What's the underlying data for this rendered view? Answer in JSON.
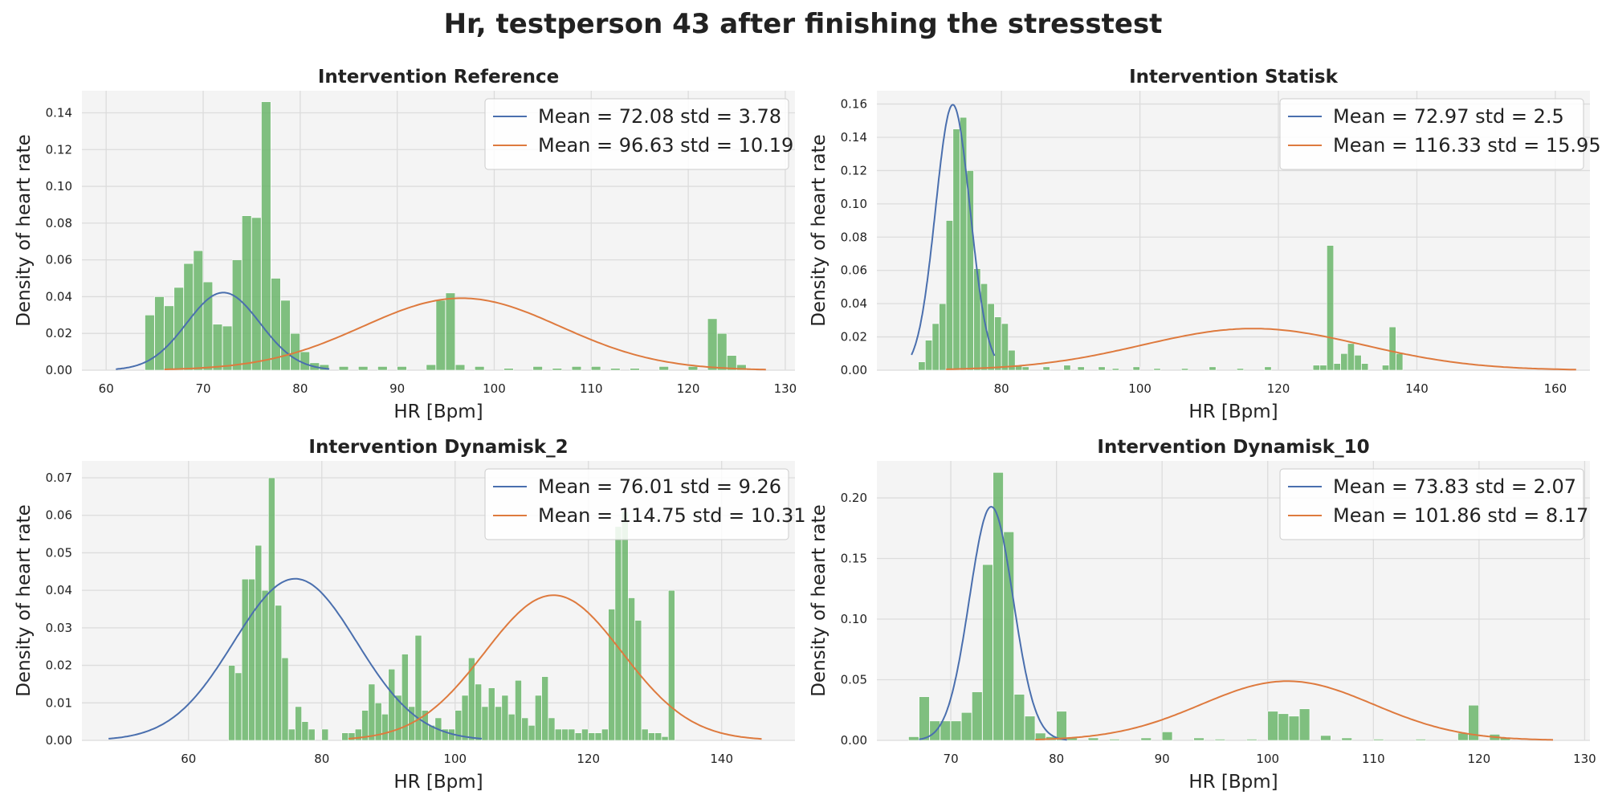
{
  "suptitle": "Hr, testperson 43 after finishing the stresstest",
  "colors": {
    "axes_bg": "#f4f4f4",
    "grid": "#dcdcdc",
    "hist": "#6ab56a",
    "fit1": "#4a6fae",
    "fit2": "#de7a3e",
    "text": "#222222"
  },
  "chart_data": [
    {
      "type": "bar",
      "title": "Intervention Reference",
      "xlabel": "HR [Bpm]",
      "ylabel": "Density of heart rate",
      "xlim": [
        57.5,
        131
      ],
      "ylim": [
        0,
        0.152
      ],
      "xticks": [
        60,
        70,
        80,
        90,
        100,
        110,
        120,
        130
      ],
      "yticks": [
        0.0,
        0.02,
        0.04,
        0.06,
        0.08,
        0.1,
        0.12,
        0.14
      ],
      "ytick_decimals": 2,
      "grid": true,
      "legend_position": "top-right",
      "histogram": {
        "bin_width": 0.97,
        "bins": [
          [
            64.0,
            0.03
          ],
          [
            65.0,
            0.04
          ],
          [
            66.0,
            0.035
          ],
          [
            67.0,
            0.045
          ],
          [
            68.0,
            0.058
          ],
          [
            69.0,
            0.065
          ],
          [
            70.0,
            0.048
          ],
          [
            71.0,
            0.025
          ],
          [
            72.0,
            0.024
          ],
          [
            73.0,
            0.06
          ],
          [
            74.0,
            0.084
          ],
          [
            75.0,
            0.083
          ],
          [
            76.0,
            0.146
          ],
          [
            77.0,
            0.05
          ],
          [
            78.0,
            0.038
          ],
          [
            79.0,
            0.02
          ],
          [
            80.0,
            0.01
          ],
          [
            81.0,
            0.004
          ],
          [
            82.0,
            0.003
          ],
          [
            84.0,
            0.002
          ],
          [
            86.0,
            0.002
          ],
          [
            88.0,
            0.002
          ],
          [
            90.0,
            0.002
          ],
          [
            93.0,
            0.003
          ],
          [
            94.0,
            0.038
          ],
          [
            95.0,
            0.042
          ],
          [
            96.0,
            0.003
          ],
          [
            98.0,
            0.002
          ],
          [
            101.0,
            0.001
          ],
          [
            104.0,
            0.002
          ],
          [
            106.0,
            0.001
          ],
          [
            108.0,
            0.002
          ],
          [
            110.0,
            0.002
          ],
          [
            112.0,
            0.001
          ],
          [
            114.0,
            0.001
          ],
          [
            117.0,
            0.002
          ],
          [
            120.0,
            0.002
          ],
          [
            122.0,
            0.028
          ],
          [
            123.0,
            0.02
          ],
          [
            124.0,
            0.008
          ],
          [
            125.0,
            0.003
          ],
          [
            126.0,
            0.001
          ]
        ]
      },
      "fits": [
        {
          "mean": 72.08,
          "std": 3.78,
          "weight": 0.4,
          "x_range": [
            61,
            83
          ],
          "label": "Mean = 72.08 std = 3.78"
        },
        {
          "mean": 96.63,
          "std": 10.19,
          "weight": 1.0,
          "x_range": [
            66,
            128
          ],
          "label": "Mean = 96.63 std = 10.19"
        }
      ]
    },
    {
      "type": "bar",
      "title": "Intervention Statisk",
      "xlabel": "HR [Bpm]",
      "ylabel": "Density of heart rate",
      "xlim": [
        62,
        165
      ],
      "ylim": [
        0,
        0.168
      ],
      "xticks": [
        80,
        100,
        120,
        140,
        160
      ],
      "yticks": [
        0.0,
        0.02,
        0.04,
        0.06,
        0.08,
        0.1,
        0.12,
        0.14,
        0.16
      ],
      "ytick_decimals": 2,
      "grid": true,
      "legend_position": "top-right",
      "histogram": {
        "bin_width": 0.97,
        "bins": [
          [
            68.0,
            0.005
          ],
          [
            69.0,
            0.018
          ],
          [
            70.0,
            0.028
          ],
          [
            71.0,
            0.04
          ],
          [
            72.0,
            0.09
          ],
          [
            73.0,
            0.145
          ],
          [
            74.0,
            0.152
          ],
          [
            75.0,
            0.12
          ],
          [
            76.0,
            0.061
          ],
          [
            77.0,
            0.052
          ],
          [
            78.0,
            0.04
          ],
          [
            79.0,
            0.032
          ],
          [
            80.0,
            0.028
          ],
          [
            81.0,
            0.012
          ],
          [
            82.0,
            0.003
          ],
          [
            83.0,
            0.002
          ],
          [
            86.0,
            0.002
          ],
          [
            89.0,
            0.003
          ],
          [
            91.0,
            0.002
          ],
          [
            94.0,
            0.002
          ],
          [
            96.0,
            0.001
          ],
          [
            99.0,
            0.002
          ],
          [
            102.0,
            0.001
          ],
          [
            106.0,
            0.001
          ],
          [
            110.0,
            0.002
          ],
          [
            114.0,
            0.001
          ],
          [
            118.0,
            0.002
          ],
          [
            125.0,
            0.003
          ],
          [
            126.0,
            0.003
          ],
          [
            127.0,
            0.075
          ],
          [
            128.0,
            0.004
          ],
          [
            129.0,
            0.01
          ],
          [
            130.0,
            0.016
          ],
          [
            131.0,
            0.009
          ],
          [
            132.0,
            0.004
          ],
          [
            135.0,
            0.003
          ],
          [
            136.0,
            0.026
          ],
          [
            137.0,
            0.01
          ]
        ]
      },
      "fits": [
        {
          "mean": 72.97,
          "std": 2.5,
          "weight": 1.0,
          "x_range": [
            67,
            79
          ],
          "label": "Mean = 72.97 std = 2.5"
        },
        {
          "mean": 116.33,
          "std": 15.95,
          "weight": 1.0,
          "x_range": [
            72,
            163
          ],
          "label": "Mean = 116.33 std = 15.95"
        }
      ]
    },
    {
      "type": "bar",
      "title": "Intervention Dynamisk_2",
      "xlabel": "HR [Bpm]",
      "ylabel": "Density of heart rate",
      "xlim": [
        44,
        151
      ],
      "ylim": [
        0,
        0.0745
      ],
      "xticks": [
        60,
        80,
        100,
        120,
        140
      ],
      "yticks": [
        0.0,
        0.01,
        0.02,
        0.03,
        0.04,
        0.05,
        0.06,
        0.07
      ],
      "ytick_decimals": 2,
      "grid": true,
      "legend_position": "top-right",
      "histogram": {
        "bin_width": 0.97,
        "bins": [
          [
            66.0,
            0.02
          ],
          [
            67.0,
            0.018
          ],
          [
            68.0,
            0.043
          ],
          [
            69.0,
            0.043
          ],
          [
            70.0,
            0.052
          ],
          [
            71.0,
            0.04
          ],
          [
            72.0,
            0.07
          ],
          [
            73.0,
            0.036
          ],
          [
            74.0,
            0.022
          ],
          [
            75.0,
            0.003
          ],
          [
            76.0,
            0.009
          ],
          [
            77.0,
            0.005
          ],
          [
            78.0,
            0.003
          ],
          [
            80.0,
            0.003
          ],
          [
            83.0,
            0.002
          ],
          [
            84.0,
            0.002
          ],
          [
            85.0,
            0.003
          ],
          [
            86.0,
            0.008
          ],
          [
            87.0,
            0.015
          ],
          [
            88.0,
            0.01
          ],
          [
            89.0,
            0.007
          ],
          [
            90.0,
            0.019
          ],
          [
            91.0,
            0.012
          ],
          [
            92.0,
            0.023
          ],
          [
            93.0,
            0.009
          ],
          [
            94.0,
            0.028
          ],
          [
            95.0,
            0.008
          ],
          [
            96.0,
            0.004
          ],
          [
            97.0,
            0.006
          ],
          [
            98.0,
            0.003
          ],
          [
            99.0,
            0.003
          ],
          [
            100.0,
            0.008
          ],
          [
            101.0,
            0.012
          ],
          [
            102.0,
            0.022
          ],
          [
            103.0,
            0.015
          ],
          [
            104.0,
            0.009
          ],
          [
            105.0,
            0.014
          ],
          [
            106.0,
            0.009
          ],
          [
            107.0,
            0.012
          ],
          [
            108.0,
            0.007
          ],
          [
            109.0,
            0.016
          ],
          [
            110.0,
            0.006
          ],
          [
            111.0,
            0.004
          ],
          [
            112.0,
            0.012
          ],
          [
            113.0,
            0.017
          ],
          [
            114.0,
            0.006
          ],
          [
            115.0,
            0.003
          ],
          [
            116.0,
            0.003
          ],
          [
            117.0,
            0.003
          ],
          [
            118.0,
            0.002
          ],
          [
            119.0,
            0.003
          ],
          [
            120.0,
            0.002
          ],
          [
            121.0,
            0.002
          ],
          [
            122.0,
            0.003
          ],
          [
            123.0,
            0.035
          ],
          [
            124.0,
            0.057
          ],
          [
            125.0,
            0.061
          ],
          [
            126.0,
            0.038
          ],
          [
            127.0,
            0.032
          ],
          [
            128.0,
            0.003
          ],
          [
            129.0,
            0.002
          ],
          [
            130.0,
            0.002
          ],
          [
            131.0,
            0.001
          ],
          [
            132.0,
            0.04
          ]
        ]
      },
      "fits": [
        {
          "mean": 76.01,
          "std": 9.26,
          "weight": 1.0,
          "x_range": [
            48,
            104
          ],
          "label": "Mean = 76.01 std = 9.26"
        },
        {
          "mean": 114.75,
          "std": 10.31,
          "weight": 1.0,
          "x_range": [
            84,
            146
          ],
          "label": "Mean = 114.75 std = 10.31"
        }
      ]
    },
    {
      "type": "bar",
      "title": "Intervention Dynamisk_10",
      "xlabel": "HR [Bpm]",
      "ylabel": "Density of heart rate",
      "xlim": [
        63,
        130.5
      ],
      "ylim": [
        0,
        0.2305
      ],
      "xticks": [
        70,
        80,
        90,
        100,
        110,
        120,
        130
      ],
      "yticks": [
        0.0,
        0.05,
        0.1,
        0.15,
        0.2
      ],
      "ytick_decimals": 2,
      "grid": true,
      "legend_position": "top-right",
      "histogram": {
        "bin_width": 0.97,
        "bins": [
          [
            66.0,
            0.003
          ],
          [
            67.0,
            0.036
          ],
          [
            68.0,
            0.016
          ],
          [
            69.0,
            0.016
          ],
          [
            70.0,
            0.016
          ],
          [
            71.0,
            0.023
          ],
          [
            72.0,
            0.04
          ],
          [
            73.0,
            0.145
          ],
          [
            74.0,
            0.221
          ],
          [
            75.0,
            0.172
          ],
          [
            76.0,
            0.038
          ],
          [
            77.0,
            0.02
          ],
          [
            78.0,
            0.006
          ],
          [
            79.0,
            0.003
          ],
          [
            80.0,
            0.024
          ],
          [
            81.0,
            0.002
          ],
          [
            83.0,
            0.002
          ],
          [
            85.0,
            0.001
          ],
          [
            88.0,
            0.002
          ],
          [
            90.0,
            0.007
          ],
          [
            93.0,
            0.002
          ],
          [
            95.0,
            0.001
          ],
          [
            98.0,
            0.001
          ],
          [
            100.0,
            0.024
          ],
          [
            101.0,
            0.022
          ],
          [
            102.0,
            0.02
          ],
          [
            103.0,
            0.026
          ],
          [
            105.0,
            0.004
          ],
          [
            107.0,
            0.002
          ],
          [
            110.0,
            0.001
          ],
          [
            114.0,
            0.001
          ],
          [
            118.0,
            0.006
          ],
          [
            119.0,
            0.029
          ],
          [
            121.0,
            0.005
          ],
          [
            122.0,
            0.002
          ]
        ]
      },
      "fits": [
        {
          "mean": 73.83,
          "std": 2.07,
          "weight": 1.0,
          "x_range": [
            67,
            81
          ],
          "label": "Mean = 73.83 std = 2.07"
        },
        {
          "mean": 101.86,
          "std": 8.17,
          "weight": 1.0,
          "x_range": [
            78,
            127
          ],
          "label": "Mean = 101.86 std = 8.17"
        }
      ]
    }
  ]
}
